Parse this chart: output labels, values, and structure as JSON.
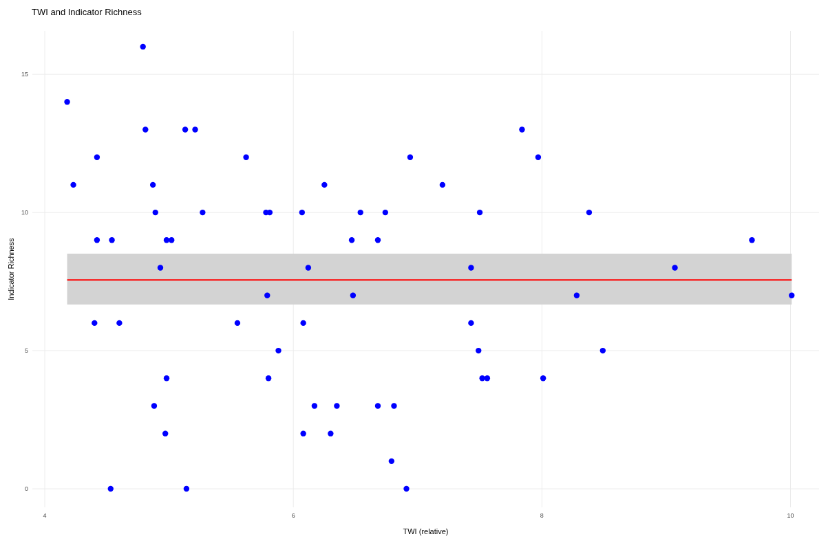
{
  "chart_data": {
    "type": "scatter",
    "title": "TWI and Indicator Richness",
    "xlabel": "TWI (relative)",
    "ylabel": "Indicator Richness",
    "xlim": [
      3.9,
      10.23
    ],
    "ylim": [
      -0.67,
      16.57
    ],
    "xticks": [
      4,
      6,
      8,
      10
    ],
    "yticks": [
      0,
      5,
      10,
      15
    ],
    "grid": true,
    "marker": "circle",
    "series": [
      {
        "color": "#0000ff",
        "x": [
          4.18,
          4.23,
          4.42,
          4.4,
          4.42,
          4.54,
          4.6,
          4.53,
          4.79,
          4.81,
          4.87,
          4.89,
          4.93,
          4.88,
          4.97,
          4.98,
          4.98,
          5.02,
          5.13,
          5.21,
          5.14,
          5.27,
          5.55,
          5.62,
          5.78,
          5.81,
          5.79,
          5.8,
          5.88,
          6.07,
          6.12,
          6.08,
          6.08,
          6.17,
          6.25,
          6.3,
          6.35,
          6.47,
          6.48,
          6.54,
          6.68,
          6.74,
          6.68,
          6.81,
          6.79,
          6.91,
          6.94,
          7.2,
          7.43,
          7.43,
          7.5,
          7.49,
          7.52,
          7.56,
          7.84,
          7.97,
          8.01,
          8.28,
          8.38,
          8.49,
          9.07,
          9.69,
          10.01
        ],
        "values": [
          14,
          11,
          12,
          6,
          9,
          9,
          6,
          0,
          16,
          13,
          11,
          10,
          8,
          3,
          2,
          4,
          9,
          9,
          13,
          13,
          0,
          10,
          6,
          12,
          10,
          10,
          7,
          4,
          5,
          10,
          8,
          6,
          2,
          3,
          11,
          2,
          3,
          9,
          7,
          10,
          9,
          10,
          3,
          3,
          1,
          0,
          12,
          11,
          8,
          6,
          10,
          5,
          4,
          4,
          13,
          12,
          4,
          7,
          10,
          5,
          8,
          9,
          7
        ]
      },
      {
        "type": "line",
        "color": "#ff0000",
        "x": [
          4.18,
          10.01
        ],
        "values": [
          7.56,
          7.56
        ],
        "lower": [
          6.67,
          6.67
        ],
        "upper": [
          8.51,
          8.51
        ],
        "marker": "none",
        "line_style": "solid"
      }
    ]
  }
}
